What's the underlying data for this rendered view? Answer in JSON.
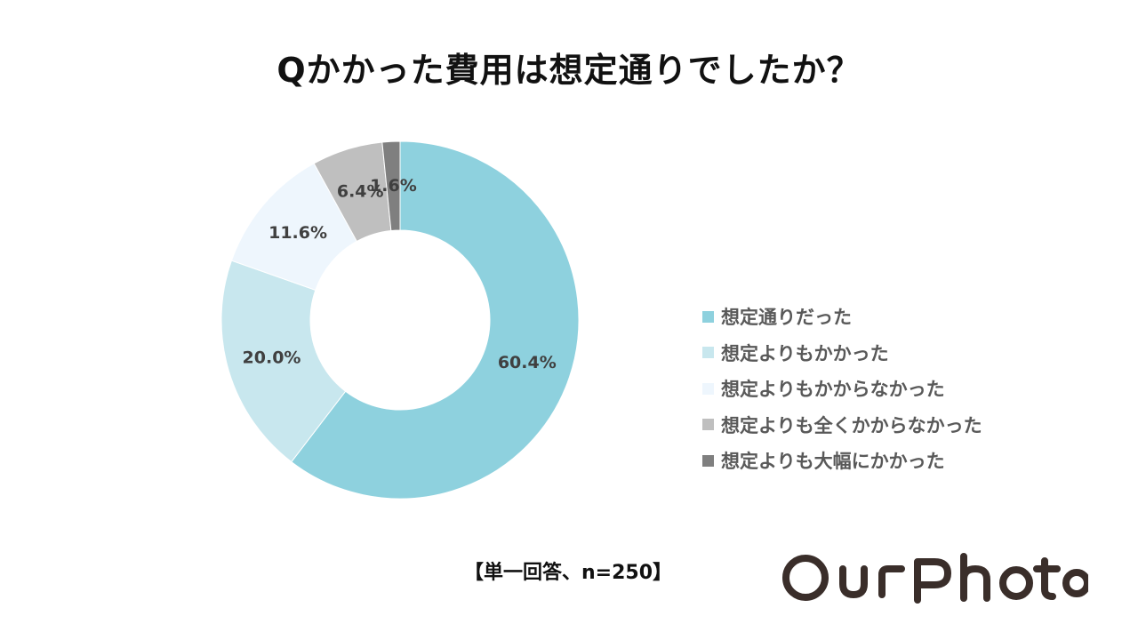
{
  "chart_data": {
    "type": "pie",
    "title": "Qかかった費用は想定通りでしたか？",
    "categories": [
      "想定通りだった",
      "想定よりもかかった",
      "想定よりもかからなかった",
      "想定よりも全くかからなかった",
      "想定よりも大幅にかかった"
    ],
    "values": [
      60.4,
      20.0,
      11.6,
      6.4,
      1.6
    ],
    "value_labels": [
      "60.4%",
      "20.0%",
      "11.6%",
      "6.4%",
      "1.6%"
    ],
    "colors": [
      "#8ED1DE",
      "#C8E7EE",
      "#EEF6FD",
      "#BFBFBF",
      "#7F7F7F"
    ],
    "donut": true,
    "legend_position": "right",
    "note": "【単一回答、n=250】"
  },
  "brand": {
    "name": "OurPhoto",
    "color": "#3A2E2A"
  }
}
